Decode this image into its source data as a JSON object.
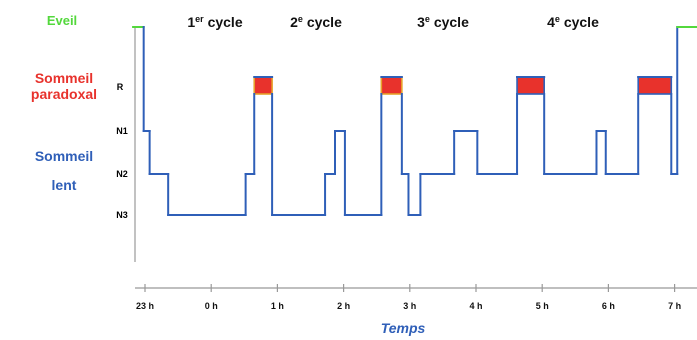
{
  "chart_data": {
    "type": "line",
    "title": "",
    "xlabel": "Temps",
    "ylabel": "",
    "x_unit": "h",
    "x_ticks": [
      {
        "label": "23 h",
        "h": 0
      },
      {
        "label": "0 h",
        "h": 1
      },
      {
        "label": "1 h",
        "h": 2
      },
      {
        "label": "2 h",
        "h": 3
      },
      {
        "label": "3 h",
        "h": 4
      },
      {
        "label": "4 h",
        "h": 5
      },
      {
        "label": "5 h",
        "h": 6
      },
      {
        "label": "6 h",
        "h": 7
      },
      {
        "label": "7 h",
        "h": 8
      }
    ],
    "stage_labels": [
      "R",
      "N1",
      "N2",
      "N3"
    ],
    "groups": [
      {
        "name": "Eveil",
        "color": "#53d83c"
      },
      {
        "name": "Sommeil paradoxal",
        "color": "#e8322c"
      },
      {
        "name": "Sommeil lent",
        "color": "#2f5fb8"
      }
    ],
    "cycles": [
      {
        "num": "1",
        "sup": "er",
        "rest": " cycle"
      },
      {
        "num": "2",
        "sup": "e",
        "rest": " cycle"
      },
      {
        "num": "3",
        "sup": "e",
        "rest": " cycle"
      },
      {
        "num": "4",
        "sup": "e",
        "rest": " cycle"
      }
    ],
    "hypnogram": [
      {
        "t": -0.18,
        "s": "W"
      },
      {
        "t": -0.02,
        "s": "N1"
      },
      {
        "t": 0.07,
        "s": "N2"
      },
      {
        "t": 0.35,
        "s": "N3"
      },
      {
        "t": 1.52,
        "s": "N2"
      },
      {
        "t": 1.65,
        "s": "R"
      },
      {
        "t": 1.92,
        "s": "N3"
      },
      {
        "t": 2.72,
        "s": "N2"
      },
      {
        "t": 2.87,
        "s": "N1"
      },
      {
        "t": 3.02,
        "s": "N3"
      },
      {
        "t": 3.57,
        "s": "R"
      },
      {
        "t": 3.88,
        "s": "N2"
      },
      {
        "t": 3.98,
        "s": "N3"
      },
      {
        "t": 4.16,
        "s": "N2"
      },
      {
        "t": 4.67,
        "s": "N1"
      },
      {
        "t": 5.02,
        "s": "N2"
      },
      {
        "t": 5.62,
        "s": "R"
      },
      {
        "t": 6.03,
        "s": "N2"
      },
      {
        "t": 6.82,
        "s": "N1"
      },
      {
        "t": 6.96,
        "s": "N2"
      },
      {
        "t": 7.45,
        "s": "R"
      },
      {
        "t": 7.95,
        "s": "N2"
      },
      {
        "t": 8.04,
        "s": "W"
      },
      {
        "t": 8.6,
        "s": "W"
      }
    ],
    "rem_periods": [
      {
        "start": 1.65,
        "end": 1.92
      },
      {
        "start": 3.57,
        "end": 3.88
      },
      {
        "start": 5.62,
        "end": 6.03
      },
      {
        "start": 7.45,
        "end": 7.95
      }
    ],
    "grid": false,
    "legend": "left"
  }
}
